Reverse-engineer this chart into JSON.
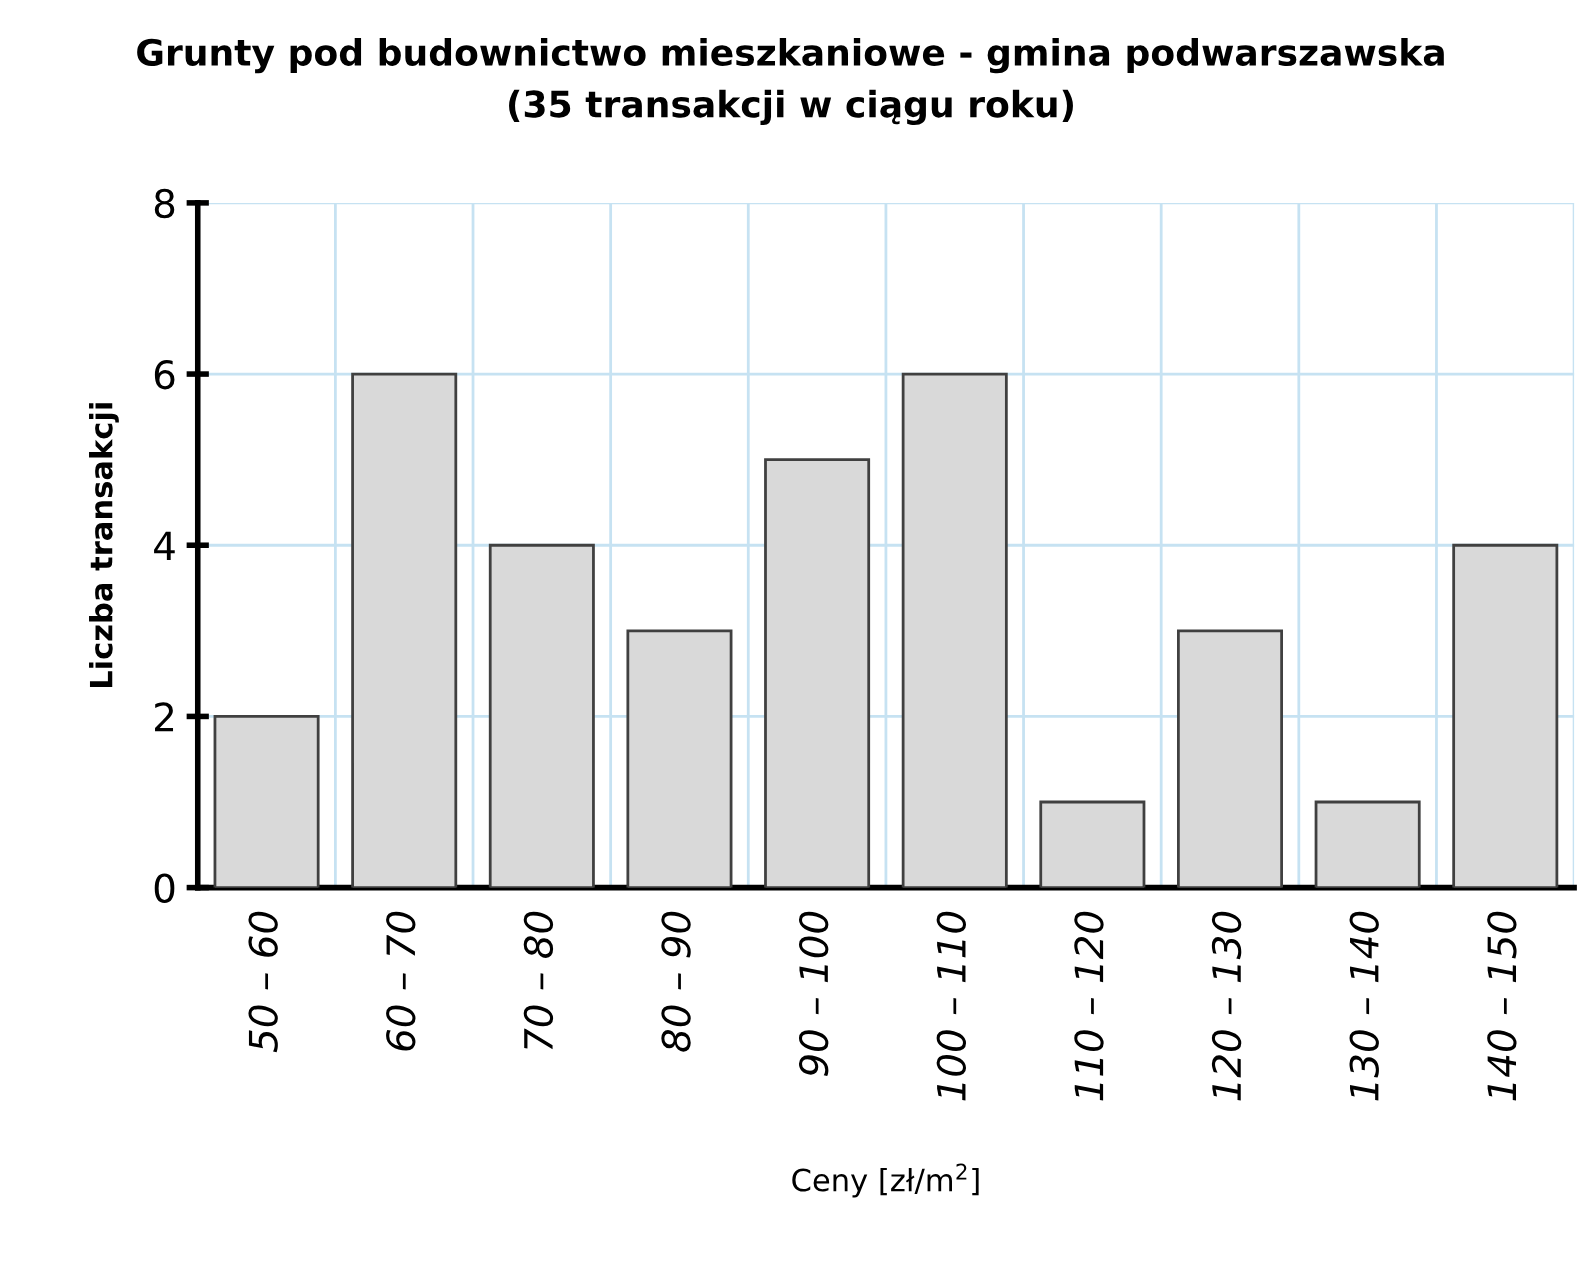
{
  "chart_data": {
    "type": "bar",
    "title": "Grunty pod budownictwo mieszkaniowe - gmina podwarszawska\n(35 transakcji w ciągu roku)",
    "xlabel": "Ceny [zł/m$^{2}$]",
    "ylabel": "Liczba transakcji",
    "categories": [
      "50 – 60",
      "60 – 70",
      "70 – 80",
      "80 – 90",
      "90 – 100",
      "100 – 110",
      "110 – 120",
      "120 – 130",
      "130 – 140",
      "140 – 150"
    ],
    "values": [
      2,
      6,
      4,
      3,
      5,
      6,
      1,
      3,
      1,
      4
    ],
    "color": "#d9d9d9",
    "ylim": [
      0,
      8
    ],
    "yticks": [
      0,
      2,
      4,
      6,
      8
    ],
    "grid": true
  }
}
